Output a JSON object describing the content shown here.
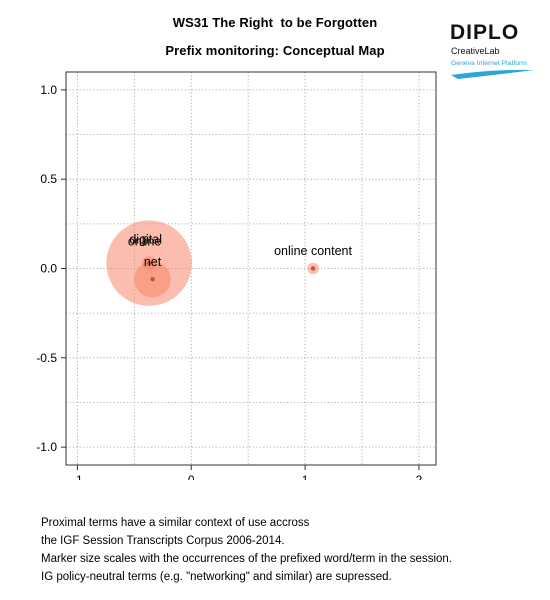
{
  "chart_data": {
    "type": "scatter",
    "title": "WS31 The Right  to be Forgotten",
    "subtitle": "Prefix monitoring: Conceptual Map",
    "xlim": [
      -1.1,
      2.15
    ],
    "ylim": [
      -1.1,
      1.1
    ],
    "x_ticks": [
      -1,
      0,
      1,
      2
    ],
    "x_tick_labels": [
      "-1",
      "0",
      "1",
      "2"
    ],
    "y_ticks": [
      -1.0,
      -0.5,
      0.0,
      0.5,
      1.0
    ],
    "y_tick_labels": [
      "-1.0",
      "-0.5",
      "0.0",
      "0.5",
      "1.0"
    ],
    "grid": true,
    "points": [
      {
        "label": "digital",
        "x": -0.37,
        "y": 0.03,
        "size": 5.5,
        "label_dx": -0.03,
        "label_dy": 0.11
      },
      {
        "label": "online",
        "x": -0.37,
        "y": 0.03,
        "size": 0.15,
        "label_dx": -0.04,
        "label_dy": 0.1
      },
      {
        "label": "net",
        "x": -0.34,
        "y": -0.06,
        "size": 1.0,
        "label_dx": 0.0,
        "label_dy": 0.075
      },
      {
        "label": "online content",
        "x": 1.07,
        "y": 0.0,
        "size": 0.1,
        "label_dx": 0.0,
        "label_dy": 0.075
      }
    ],
    "marker_color": "#f7876a",
    "center_color": "#c0563a"
  },
  "header": {
    "title": "WS31 The Right  to be Forgotten",
    "subtitle": "Prefix monitoring: Conceptual Map"
  },
  "logo": {
    "brand": "DIPLO",
    "line1": "CreativeLab",
    "line2": "Geneva Internet Platform",
    "accent_color": "#2aa6d9"
  },
  "notes": [
    "Proximal terms have a similar context of use accross",
    "the IGF Session Transcripts Corpus 2006-2014.",
    "Marker size scales with the occurrences of the prefixed word/term in the session.",
    "IG policy-neutral terms (e.g. \"networking\" and similar) are supressed."
  ]
}
